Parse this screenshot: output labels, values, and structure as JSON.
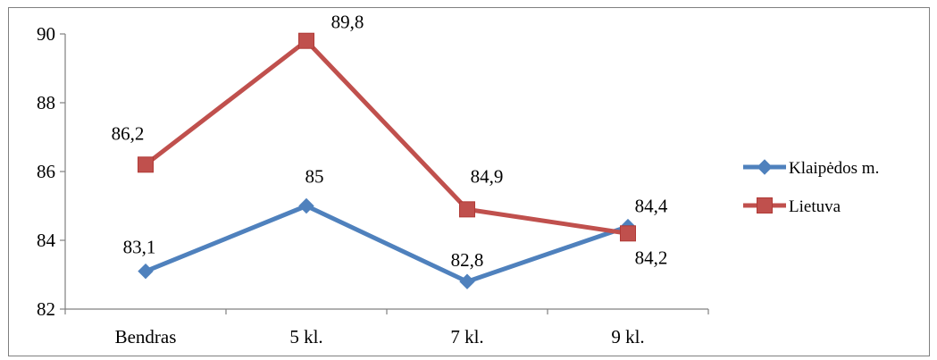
{
  "chart_data": {
    "type": "line",
    "categories": [
      "Bendras",
      "5 kl.",
      "7 kl.",
      "9 kl."
    ],
    "series": [
      {
        "name": "Klaipėdos m.",
        "values": [
          83.1,
          85,
          82.8,
          84.4
        ],
        "color": "#4f81bd",
        "marker": "diamond"
      },
      {
        "name": "Lietuva",
        "values": [
          86.2,
          89.8,
          84.9,
          84.2
        ],
        "color": "#c0504d",
        "marker": "square"
      }
    ],
    "data_labels": {
      "Klaipėdos m.": [
        "83,1",
        "85",
        "82,8",
        "84,4"
      ],
      "Lietuva": [
        "86,2",
        "89,8",
        "84,9",
        "84,2"
      ]
    },
    "yticks": [
      "82",
      "84",
      "86",
      "88",
      "90"
    ],
    "ylim": [
      82,
      90
    ],
    "title": "",
    "xlabel": "",
    "ylabel": "",
    "grid": false,
    "legend_position": "right"
  }
}
